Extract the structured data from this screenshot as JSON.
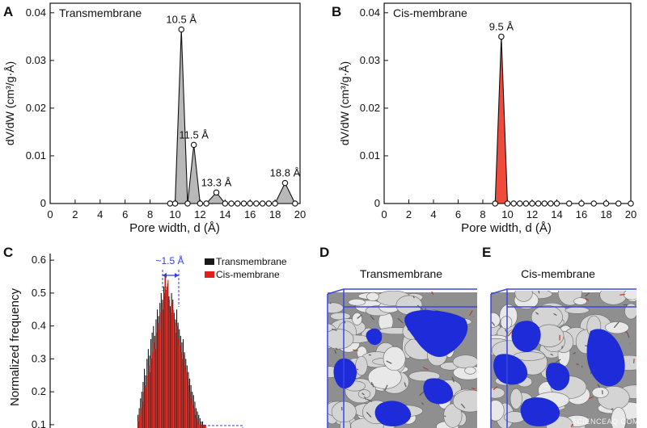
{
  "panels": {
    "A": "A",
    "B": "B",
    "C": "C",
    "D": "D",
    "E": "E"
  },
  "watermark": "SCIENCEAQ.COM",
  "colors": {
    "transmembrane_fill": "#b8b8b8",
    "cis_fill": "#f04a3a",
    "hist_transmembrane": "#1a1a1a",
    "hist_cis": "#e0201a",
    "annotation_blue": "#2f3fd8",
    "pore_blue": "#1e2bd8",
    "structure_gray": "#c9c9c9"
  },
  "chart_data": [
    {
      "id": "A",
      "type": "area",
      "title": "Transmembrane",
      "xlabel": "Pore width, d (Å)",
      "ylabel": "dV/dW (cm³/g·Å)",
      "xlim": [
        0,
        20
      ],
      "ylim": [
        0,
        0.042
      ],
      "xticks": [
        0,
        2,
        4,
        6,
        8,
        10,
        12,
        14,
        16,
        18,
        20
      ],
      "xtick_labels": [
        "0",
        "2",
        "4",
        "6",
        "8",
        "10",
        "12",
        "14",
        "16",
        "18",
        "20"
      ],
      "yticks": [
        0,
        0.01,
        0.02,
        0.03,
        0.04
      ],
      "ytick_labels": [
        "0",
        "0.01",
        "0.02",
        "0.03",
        "0.04"
      ],
      "grid": false,
      "x": [
        9.6,
        10.0,
        10.5,
        11.0,
        11.5,
        12.0,
        12.5,
        13.3,
        14.0,
        14.5,
        15.0,
        15.5,
        16.0,
        16.5,
        17.0,
        17.5,
        18.0,
        18.8,
        19.6
      ],
      "y": [
        0,
        0,
        0.0365,
        0,
        0.0123,
        0,
        0,
        0.0023,
        0,
        0,
        0,
        0,
        0,
        0,
        0,
        0,
        0,
        0.0043,
        0
      ],
      "annotations": [
        {
          "x": 10.5,
          "y": 0.0365,
          "text": "10.5 Å"
        },
        {
          "x": 11.5,
          "y": 0.0123,
          "text": "11.5 Å"
        },
        {
          "x": 13.3,
          "y": 0.0023,
          "text": "13.3 Å"
        },
        {
          "x": 18.8,
          "y": 0.0043,
          "text": "18.8 Å"
        }
      ]
    },
    {
      "id": "B",
      "type": "area",
      "title": "Cis-membrane",
      "xlabel": "Pore width, d (Å)",
      "ylabel": "dV/dW (cm³/g·Å)",
      "xlim": [
        0,
        20
      ],
      "ylim": [
        0,
        0.042
      ],
      "xticks": [
        0,
        2,
        4,
        6,
        8,
        10,
        12,
        14,
        16,
        18,
        20
      ],
      "xtick_labels": [
        "0",
        "2",
        "4",
        "6",
        "8",
        "10",
        "12",
        "14",
        "16",
        "18",
        "20"
      ],
      "yticks": [
        0,
        0.01,
        0.02,
        0.03,
        0.04
      ],
      "ytick_labels": [
        "0",
        "0.01",
        "0.02",
        "0.03",
        "0.04"
      ],
      "grid": false,
      "x": [
        9.0,
        9.5,
        10.0,
        10.5,
        11.0,
        11.5,
        12.0,
        12.5,
        13.0,
        13.5,
        14.0,
        15.0,
        16.0,
        17.0,
        18.0,
        19.0,
        20.0
      ],
      "y": [
        0,
        0.035,
        0,
        0,
        0,
        0,
        0,
        0,
        0,
        0,
        0,
        0,
        0,
        0,
        0,
        0,
        0
      ],
      "annotations": [
        {
          "x": 9.5,
          "y": 0.035,
          "text": "9.5 Å"
        }
      ]
    },
    {
      "id": "C",
      "type": "bar",
      "ylabel": "Normalized frequency",
      "ylim": [
        0.09,
        0.62
      ],
      "yticks": [
        0.1,
        0.2,
        0.3,
        0.4,
        0.5,
        0.6
      ],
      "ytick_labels": [
        "0.1",
        "0.2",
        "0.3",
        "0.4",
        "0.5",
        "0.6"
      ],
      "legend_placement": "top-right",
      "series": [
        {
          "name": "Transmembrane"
        },
        {
          "name": "Cis-membrane"
        }
      ],
      "transmembrane_values": [
        0.13,
        0.15,
        0.18,
        0.2,
        0.23,
        0.27,
        0.25,
        0.3,
        0.33,
        0.31,
        0.36,
        0.38,
        0.4,
        0.37,
        0.42,
        0.45,
        0.43,
        0.47,
        0.5,
        0.48,
        0.52,
        0.55,
        0.51,
        0.53,
        0.49,
        0.46,
        0.5,
        0.48,
        0.44,
        0.42,
        0.45,
        0.41,
        0.39,
        0.37,
        0.35,
        0.36,
        0.32,
        0.3,
        0.28,
        0.26,
        0.24,
        0.22,
        0.2,
        0.19,
        0.17,
        0.15,
        0.14,
        0.13,
        0.12,
        0.11,
        0.11,
        0.1,
        0.1
      ],
      "cis_values": [
        0.11,
        0.13,
        0.15,
        0.17,
        0.2,
        0.22,
        0.21,
        0.25,
        0.28,
        0.26,
        0.3,
        0.32,
        0.35,
        0.33,
        0.38,
        0.41,
        0.39,
        0.44,
        0.47,
        0.45,
        0.5,
        0.56,
        0.52,
        0.54,
        0.48,
        0.44,
        0.47,
        0.45,
        0.41,
        0.38,
        0.4,
        0.36,
        0.34,
        0.32,
        0.3,
        0.31,
        0.28,
        0.26,
        0.24,
        0.22,
        0.2,
        0.18,
        0.16,
        0.15,
        0.13,
        0.12,
        0.11,
        0.1,
        0.1,
        0.1,
        0.1,
        0.1,
        0.1
      ],
      "annotations": [
        {
          "text": "~1.5 Å"
        }
      ]
    }
  ],
  "structures": [
    {
      "id": "D",
      "title": "Transmembrane"
    },
    {
      "id": "E",
      "title": "Cis-membrane"
    }
  ]
}
